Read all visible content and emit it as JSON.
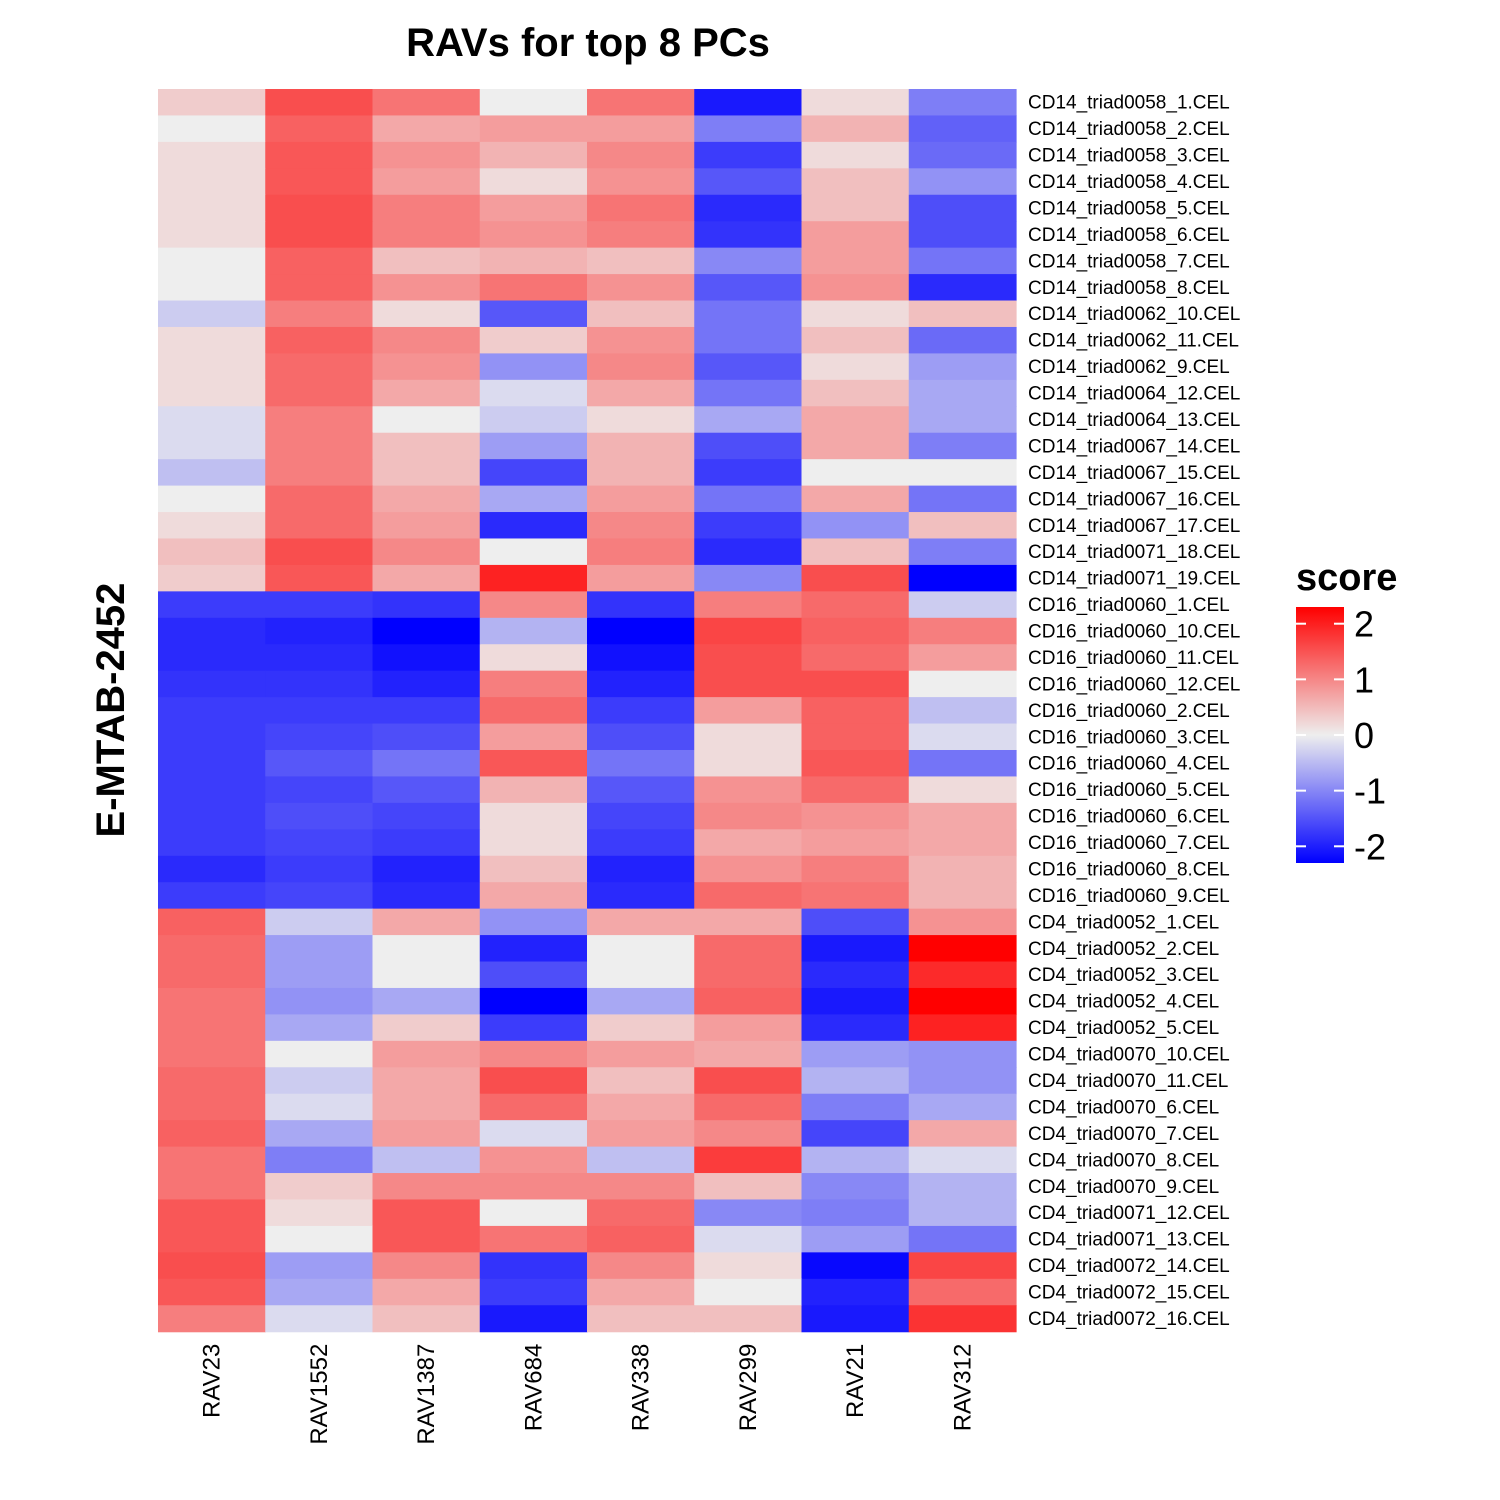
{
  "chart_data": {
    "type": "heatmap",
    "title": "RAVs for top 8 PCs",
    "ylabel": "E-MTAB-2452",
    "legend": {
      "title": "score",
      "position": "right",
      "ticks": [
        2,
        1,
        0,
        -1,
        -2
      ],
      "range": [
        -2.3,
        2.3
      ]
    },
    "colors": {
      "low": "#0000FF",
      "mid": "#EEEEEE",
      "high": "#FF0000"
    },
    "columns": [
      "RAV23",
      "RAV1552",
      "RAV1387",
      "RAV684",
      "RAV338",
      "RAV299",
      "RAV21",
      "RAV312"
    ],
    "rows": [
      "CD14_triad0058_1.CEL",
      "CD14_triad0058_2.CEL",
      "CD14_triad0058_3.CEL",
      "CD14_triad0058_4.CEL",
      "CD14_triad0058_5.CEL",
      "CD14_triad0058_6.CEL",
      "CD14_triad0058_7.CEL",
      "CD14_triad0058_8.CEL",
      "CD14_triad0062_10.CEL",
      "CD14_triad0062_11.CEL",
      "CD14_triad0062_9.CEL",
      "CD14_triad0064_12.CEL",
      "CD14_triad0064_13.CEL",
      "CD14_triad0067_14.CEL",
      "CD14_triad0067_15.CEL",
      "CD14_triad0067_16.CEL",
      "CD14_triad0067_17.CEL",
      "CD14_triad0071_18.CEL",
      "CD14_triad0071_19.CEL",
      "CD16_triad0060_1.CEL",
      "CD16_triad0060_10.CEL",
      "CD16_triad0060_11.CEL",
      "CD16_triad0060_12.CEL",
      "CD16_triad0060_2.CEL",
      "CD16_triad0060_3.CEL",
      "CD16_triad0060_4.CEL",
      "CD16_triad0060_5.CEL",
      "CD16_triad0060_6.CEL",
      "CD16_triad0060_7.CEL",
      "CD16_triad0060_8.CEL",
      "CD16_triad0060_9.CEL",
      "CD4_triad0052_1.CEL",
      "CD4_triad0052_2.CEL",
      "CD4_triad0052_3.CEL",
      "CD4_triad0052_4.CEL",
      "CD4_triad0052_5.CEL",
      "CD4_triad0070_10.CEL",
      "CD4_triad0070_11.CEL",
      "CD4_triad0070_6.CEL",
      "CD4_triad0070_7.CEL",
      "CD4_triad0070_8.CEL",
      "CD4_triad0070_9.CEL",
      "CD4_triad0071_12.CEL",
      "CD4_triad0071_13.CEL",
      "CD4_triad0072_14.CEL",
      "CD4_triad0072_15.CEL",
      "CD4_triad0072_16.CEL"
    ],
    "values": [
      [
        0.2,
        1.4,
        1.0,
        0.0,
        1.0,
        -2.0,
        0.1,
        -0.9
      ],
      [
        0.0,
        1.2,
        0.5,
        0.6,
        0.6,
        -0.9,
        0.4,
        -1.2
      ],
      [
        0.1,
        1.3,
        0.7,
        0.4,
        0.8,
        -1.6,
        0.1,
        -1.1
      ],
      [
        0.1,
        1.3,
        0.6,
        0.1,
        0.7,
        -1.3,
        0.3,
        -0.7
      ],
      [
        0.1,
        1.4,
        0.9,
        0.6,
        1.0,
        -1.8,
        0.3,
        -1.4
      ],
      [
        0.1,
        1.4,
        0.9,
        0.7,
        0.9,
        -1.7,
        0.6,
        -1.4
      ],
      [
        0.0,
        1.2,
        0.3,
        0.4,
        0.3,
        -0.8,
        0.6,
        -1.0
      ],
      [
        0.0,
        1.2,
        0.7,
        1.0,
        0.7,
        -1.3,
        0.7,
        -1.8
      ],
      [
        -0.2,
        0.9,
        0.1,
        -1.3,
        0.3,
        -1.0,
        0.1,
        0.3
      ],
      [
        0.1,
        1.2,
        0.8,
        0.2,
        0.7,
        -1.0,
        0.3,
        -1.1
      ],
      [
        0.1,
        1.1,
        0.7,
        -0.7,
        0.8,
        -1.3,
        0.1,
        -0.6
      ],
      [
        0.1,
        1.1,
        0.5,
        -0.1,
        0.5,
        -1.0,
        0.3,
        -0.5
      ],
      [
        -0.1,
        0.9,
        0.0,
        -0.2,
        0.1,
        -0.5,
        0.5,
        -0.5
      ],
      [
        -0.1,
        0.9,
        0.3,
        -0.6,
        0.4,
        -1.4,
        0.5,
        -0.9
      ],
      [
        -0.3,
        0.9,
        0.3,
        -1.5,
        0.4,
        -1.6,
        0.0,
        0.0
      ],
      [
        0.0,
        1.1,
        0.5,
        -0.5,
        0.6,
        -1.0,
        0.5,
        -1.0
      ],
      [
        0.1,
        1.1,
        0.6,
        -1.8,
        0.8,
        -1.6,
        -0.7,
        0.3
      ],
      [
        0.3,
        1.4,
        0.8,
        0.0,
        0.9,
        -1.8,
        0.3,
        -0.9
      ],
      [
        0.2,
        1.3,
        0.5,
        1.9,
        0.6,
        -0.8,
        1.4,
        -2.3
      ],
      [
        -1.6,
        -1.6,
        -1.7,
        0.8,
        -1.7,
        0.9,
        1.1,
        -0.2
      ],
      [
        -1.8,
        -1.9,
        -2.4,
        -0.4,
        -2.4,
        1.5,
        1.2,
        0.9
      ],
      [
        -1.8,
        -1.8,
        -2.1,
        0.1,
        -2.1,
        1.4,
        1.1,
        0.6
      ],
      [
        -1.7,
        -1.7,
        -1.9,
        0.9,
        -1.9,
        1.4,
        1.4,
        0.0
      ],
      [
        -1.6,
        -1.6,
        -1.6,
        1.1,
        -1.6,
        0.6,
        1.2,
        -0.3
      ],
      [
        -1.6,
        -1.5,
        -1.4,
        0.6,
        -1.4,
        0.1,
        1.2,
        -0.1
      ],
      [
        -1.6,
        -1.3,
        -1.0,
        1.3,
        -1.0,
        0.1,
        1.3,
        -1.0
      ],
      [
        -1.6,
        -1.5,
        -1.3,
        0.4,
        -1.3,
        0.7,
        1.1,
        0.1
      ],
      [
        -1.6,
        -1.4,
        -1.5,
        0.1,
        -1.5,
        0.8,
        0.7,
        0.5
      ],
      [
        -1.6,
        -1.5,
        -1.6,
        0.1,
        -1.6,
        0.5,
        0.6,
        0.5
      ],
      [
        -1.8,
        -1.6,
        -1.9,
        0.3,
        -1.9,
        0.7,
        0.9,
        0.4
      ],
      [
        -1.6,
        -1.5,
        -1.8,
        0.5,
        -1.8,
        1.1,
        1.0,
        0.4
      ],
      [
        1.2,
        -0.2,
        0.5,
        -0.7,
        0.5,
        0.5,
        -1.4,
        0.7
      ],
      [
        1.1,
        -0.6,
        0.0,
        -1.9,
        0.0,
        1.1,
        -2.0,
        2.3
      ],
      [
        1.1,
        -0.6,
        0.0,
        -1.4,
        0.0,
        1.1,
        -1.8,
        1.8
      ],
      [
        1.0,
        -0.7,
        -0.5,
        -2.4,
        -0.5,
        1.2,
        -2.0,
        2.3
      ],
      [
        1.0,
        -0.5,
        0.2,
        -1.6,
        0.2,
        0.6,
        -1.8,
        1.9
      ],
      [
        1.0,
        0.0,
        0.6,
        0.8,
        0.6,
        0.5,
        -0.6,
        -0.7
      ],
      [
        1.1,
        -0.2,
        0.5,
        1.4,
        0.3,
        1.4,
        -0.4,
        -0.7
      ],
      [
        1.1,
        -0.1,
        0.5,
        1.1,
        0.5,
        1.1,
        -0.9,
        -0.5
      ],
      [
        1.2,
        -0.5,
        0.6,
        -0.1,
        0.6,
        0.8,
        -1.5,
        0.5
      ],
      [
        1.0,
        -0.9,
        -0.3,
        0.7,
        -0.3,
        1.6,
        -0.4,
        -0.1
      ],
      [
        1.0,
        0.2,
        0.8,
        0.8,
        0.8,
        0.3,
        -0.8,
        -0.4
      ],
      [
        1.3,
        0.1,
        1.3,
        0.0,
        1.1,
        -0.8,
        -0.9,
        -0.4
      ],
      [
        1.3,
        0.0,
        1.3,
        1.0,
        1.2,
        -0.1,
        -0.6,
        -1.0
      ],
      [
        1.4,
        -0.6,
        0.8,
        -1.7,
        0.8,
        0.1,
        -2.2,
        1.5
      ],
      [
        1.3,
        -0.5,
        0.5,
        -1.6,
        0.5,
        0.0,
        -1.9,
        1.1
      ],
      [
        0.9,
        -0.1,
        0.3,
        -2.0,
        0.3,
        0.3,
        -2.0,
        1.7
      ]
    ]
  }
}
